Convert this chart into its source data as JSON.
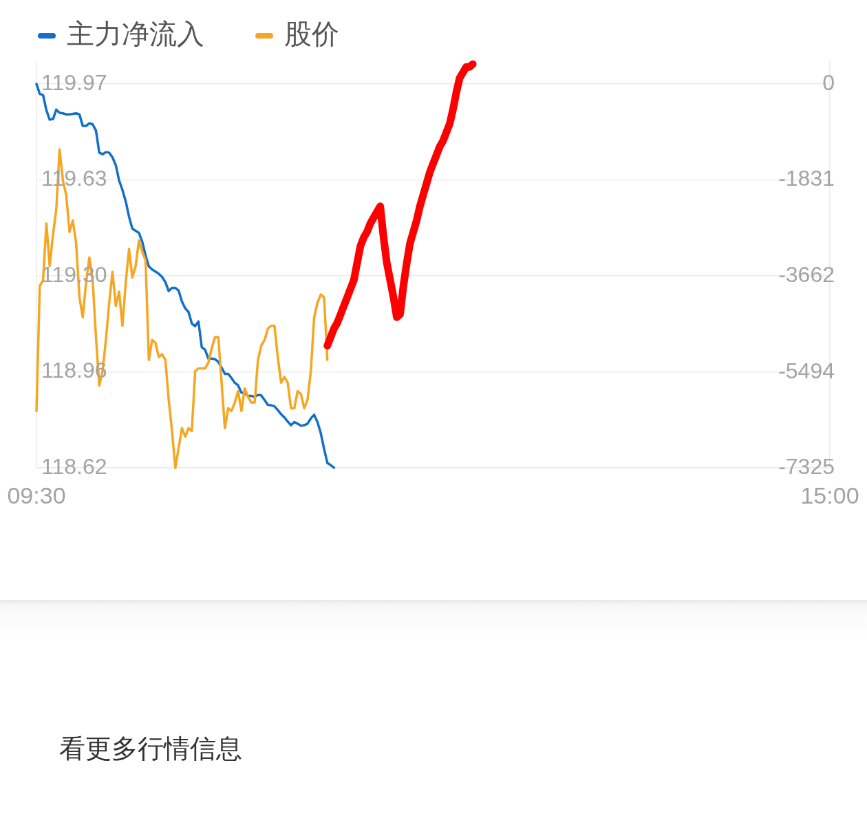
{
  "chart_data": {
    "type": "line",
    "categories": [
      "09:30",
      null,
      null,
      null,
      null,
      null,
      null,
      null,
      null,
      null,
      null,
      null,
      null,
      null,
      null,
      null,
      null,
      null,
      null,
      null,
      null,
      null,
      null,
      null,
      null,
      null,
      null,
      null,
      null,
      null,
      null,
      null,
      null,
      null,
      null,
      null,
      null,
      null,
      null,
      null,
      null,
      null,
      null,
      null,
      null,
      null,
      null,
      null,
      null,
      null,
      null,
      null,
      null,
      null,
      null,
      null,
      null,
      null,
      null,
      null,
      null,
      null,
      null,
      null,
      null,
      null,
      null,
      null,
      null,
      null,
      null,
      null,
      null,
      null,
      null,
      null,
      null,
      null,
      null,
      null,
      null,
      null,
      null,
      null,
      null,
      null,
      null,
      null,
      null,
      null,
      null,
      null,
      null,
      null,
      null,
      null,
      null,
      null,
      null,
      null,
      null,
      null,
      null,
      null,
      null,
      null,
      null,
      null,
      null,
      null,
      null,
      null,
      null,
      null,
      null,
      null,
      null,
      null,
      null,
      null,
      null,
      null,
      null,
      null,
      null,
      null,
      null,
      null,
      null,
      null,
      null,
      null,
      null,
      null,
      null,
      null,
      null,
      null,
      null,
      null,
      null,
      null,
      null,
      null,
      null,
      null,
      null,
      null,
      null,
      null,
      null,
      null,
      null,
      null,
      null,
      null,
      null,
      null,
      null,
      null,
      null,
      null,
      null,
      null,
      null,
      null,
      null,
      null,
      null,
      null,
      null,
      null,
      null,
      null,
      null,
      null,
      null,
      null,
      null,
      null,
      null,
      null,
      null,
      null,
      null,
      null,
      null,
      null,
      null,
      null,
      null,
      null,
      null,
      null,
      null,
      null,
      null,
      null,
      null,
      null,
      null,
      null,
      null,
      null,
      null,
      null,
      null,
      null,
      null,
      null,
      null,
      null,
      null,
      null,
      null,
      null,
      null,
      null,
      null,
      null,
      null,
      null,
      null,
      null,
      null,
      null,
      null,
      null,
      null,
      null,
      null,
      null,
      null,
      null,
      null,
      null,
      null,
      null,
      null,
      null,
      "15:00"
    ],
    "series": [
      {
        "name": "主力净流入",
        "color": "#1270c9",
        "axis": "y2",
        "values": [
          0,
          -190,
          -210,
          -500,
          -680,
          -670,
          -490,
          -550,
          -560,
          -580,
          -580,
          -570,
          -560,
          -580,
          -800,
          -800,
          -750,
          -770,
          -890,
          -1310,
          -1340,
          -1300,
          -1310,
          -1400,
          -1550,
          -1840,
          -2020,
          -2240,
          -2530,
          -2760,
          -2800,
          -2840,
          -3010,
          -3270,
          -3480,
          -3540,
          -3580,
          -3620,
          -3680,
          -3780,
          -3950,
          -3890,
          -3890,
          -3940,
          -4150,
          -4280,
          -4350,
          -4570,
          -4620,
          -4530,
          -5020,
          -5070,
          -5240,
          -5240,
          -5250,
          -5300,
          -5410,
          -5530,
          -5530,
          -5610,
          -5700,
          -5750,
          -5890,
          -5890,
          -5950,
          -5950,
          -5970,
          -5930,
          -5940,
          -6030,
          -6120,
          -6130,
          -6150,
          -6220,
          -6300,
          -6360,
          -6440,
          -6510,
          -6450,
          -6480,
          -6520,
          -6510,
          -6480,
          -6380,
          -6310,
          -6450,
          -6660,
          -6960,
          -7230,
          -7270,
          -7320,
          null,
          null,
          null,
          null,
          null,
          null,
          null,
          null,
          null,
          null,
          null,
          null,
          null,
          null,
          null,
          null,
          null,
          null,
          null,
          null,
          null,
          null,
          null,
          null,
          null,
          null,
          null,
          null,
          null,
          null,
          null,
          null,
          null,
          null,
          null,
          null,
          null,
          null,
          null,
          null,
          null,
          null,
          null,
          null,
          null,
          null,
          null,
          null,
          null,
          null,
          null,
          null,
          null,
          null,
          null,
          null,
          null,
          null,
          null,
          null,
          null,
          null,
          null,
          null,
          null,
          null,
          null,
          null,
          null,
          null,
          null,
          null,
          null,
          null,
          null,
          null,
          null,
          null,
          null,
          null,
          null,
          null,
          null,
          null,
          null,
          null,
          null,
          null,
          null,
          null,
          null,
          null,
          null,
          null,
          null,
          null,
          null,
          null,
          null,
          null,
          null,
          null,
          null,
          null,
          null,
          null,
          null,
          null,
          null,
          null,
          null,
          null,
          null,
          null,
          null,
          null,
          null,
          null,
          null,
          null,
          null,
          null,
          null,
          null,
          null,
          null,
          null,
          null,
          null,
          null,
          null,
          null,
          null,
          null,
          null,
          null,
          null,
          null,
          null,
          null,
          null,
          null,
          null,
          null,
          null,
          null,
          null,
          null,
          null,
          null
        ]
      },
      {
        "name": "股价",
        "color": "#f5a623",
        "values": [
          118.82,
          119.26,
          119.28,
          119.48,
          119.33,
          119.44,
          119.53,
          119.74,
          119.63,
          119.58,
          119.45,
          119.49,
          119.41,
          119.22,
          119.15,
          119.27,
          119.36,
          119.28,
          119.08,
          118.91,
          118.96,
          119.07,
          119.2,
          119.31,
          119.19,
          119.24,
          119.12,
          119.27,
          119.39,
          119.29,
          119.33,
          119.42,
          119.38,
          119.35,
          119.0,
          119.07,
          119.06,
          119.01,
          119.02,
          119.0,
          118.86,
          118.75,
          118.62,
          118.69,
          118.76,
          118.73,
          118.76,
          118.75,
          118.96,
          118.97,
          118.97,
          118.97,
          118.99,
          119.04,
          119.08,
          119.08,
          118.92,
          118.76,
          118.83,
          118.82,
          118.85,
          118.89,
          118.82,
          118.9,
          118.87,
          118.85,
          118.85,
          119.0,
          119.05,
          119.07,
          119.11,
          119.12,
          119.12,
          119.01,
          118.92,
          118.94,
          118.92,
          118.83,
          118.83,
          118.89,
          118.88,
          118.83,
          118.86,
          118.96,
          119.15,
          119.2,
          119.23,
          119.22,
          119.0,
          null,
          null,
          null,
          null,
          null,
          null,
          null,
          null,
          null,
          null,
          null,
          null,
          null,
          null,
          null,
          null,
          null,
          null,
          null,
          null,
          null,
          null,
          null,
          null,
          null,
          null,
          null,
          null,
          null,
          null,
          null,
          null,
          null,
          null,
          null,
          null,
          null,
          null,
          null,
          null,
          null,
          null,
          null,
          null,
          null,
          null,
          null,
          null,
          null,
          null,
          null,
          null,
          null,
          null,
          null,
          null,
          null,
          null,
          null,
          null,
          null,
          null,
          null,
          null,
          null,
          null,
          null,
          null,
          null,
          null,
          null,
          null,
          null,
          null,
          null,
          null,
          null,
          null,
          null,
          null,
          null,
          null,
          null,
          null,
          null,
          null,
          null,
          null,
          null,
          null,
          null,
          null,
          null,
          null,
          null,
          null,
          null,
          null,
          null,
          null,
          null,
          null,
          null,
          null,
          null,
          null,
          null,
          null,
          null,
          null,
          null,
          null,
          null,
          null,
          null,
          null,
          null,
          null,
          null,
          null,
          null,
          null,
          null,
          null,
          null,
          null,
          null,
          null,
          null,
          null,
          null,
          null,
          null,
          null,
          null,
          null,
          null,
          null,
          null,
          null,
          null,
          null,
          null,
          null,
          null,
          null,
          null,
          null,
          null,
          null,
          null,
          null
        ]
      },
      {
        "color": "#ff0000",
        "values": [
          null,
          null,
          null,
          null,
          null,
          null,
          null,
          null,
          null,
          null,
          null,
          null,
          null,
          null,
          null,
          null,
          null,
          null,
          null,
          null,
          null,
          null,
          null,
          null,
          null,
          null,
          null,
          null,
          null,
          null,
          null,
          null,
          null,
          null,
          null,
          null,
          null,
          null,
          null,
          null,
          null,
          null,
          null,
          null,
          null,
          null,
          null,
          null,
          null,
          null,
          null,
          null,
          null,
          null,
          null,
          null,
          null,
          null,
          null,
          null,
          null,
          null,
          null,
          null,
          null,
          null,
          null,
          null,
          null,
          null,
          null,
          null,
          null,
          null,
          null,
          null,
          null,
          null,
          null,
          null,
          null,
          null,
          null,
          null,
          null,
          null,
          null,
          null,
          119.05,
          119.08,
          119.11,
          119.13,
          119.16,
          119.19,
          119.22,
          119.25,
          119.28,
          119.34,
          119.4,
          119.43,
          119.45,
          119.48,
          119.5,
          119.52,
          119.54,
          119.43,
          119.34,
          119.28,
          119.22,
          119.15,
          119.16,
          119.26,
          119.34,
          119.41,
          119.45,
          119.49,
          119.54,
          119.58,
          119.62,
          119.66,
          119.69,
          119.72,
          119.75,
          119.77,
          119.8,
          119.83,
          119.88,
          119.94,
          119.99,
          120.01,
          120.03,
          120.03,
          120.04,
          null,
          null,
          null,
          null,
          null,
          null,
          null,
          null,
          null,
          null,
          null,
          null,
          null,
          null,
          null,
          null,
          null,
          null,
          null,
          null,
          null,
          null,
          null,
          null,
          null,
          null,
          null,
          null,
          null,
          null,
          null,
          null,
          null,
          null,
          null,
          null,
          null,
          null,
          null,
          null,
          null,
          null,
          null,
          null,
          null,
          null,
          null,
          null,
          null,
          null,
          null,
          null,
          null,
          null,
          null,
          null,
          null,
          null,
          null,
          null,
          null,
          null,
          null,
          null,
          null,
          null,
          null,
          null,
          null,
          null,
          null,
          null,
          null,
          null,
          null,
          null,
          null,
          null,
          null,
          null,
          null,
          null,
          null,
          null,
          null,
          null,
          null,
          null,
          null,
          null,
          null,
          null,
          null,
          null,
          null,
          null,
          null,
          null,
          null,
          null,
          null,
          null,
          null,
          null,
          null,
          null,
          null,
          null
        ]
      }
    ],
    "ylim": [
      118.62,
      120.05
    ],
    "yticks": [
      118.62,
      {
        "value": 118.9575,
        "label": "118.96"
      },
      {
        "value": 119.295,
        "label": "119.30"
      },
      {
        "value": 119.6325,
        "label": "119.63"
      },
      119.97
    ],
    "y2lim": [
      -7325,
      434
    ],
    "y2ticks": [
      -7325,
      -5494,
      -3662,
      -1831,
      0
    ],
    "grid": "y",
    "legend": "top left",
    "annotations": [
      "看更多行情信息"
    ]
  }
}
